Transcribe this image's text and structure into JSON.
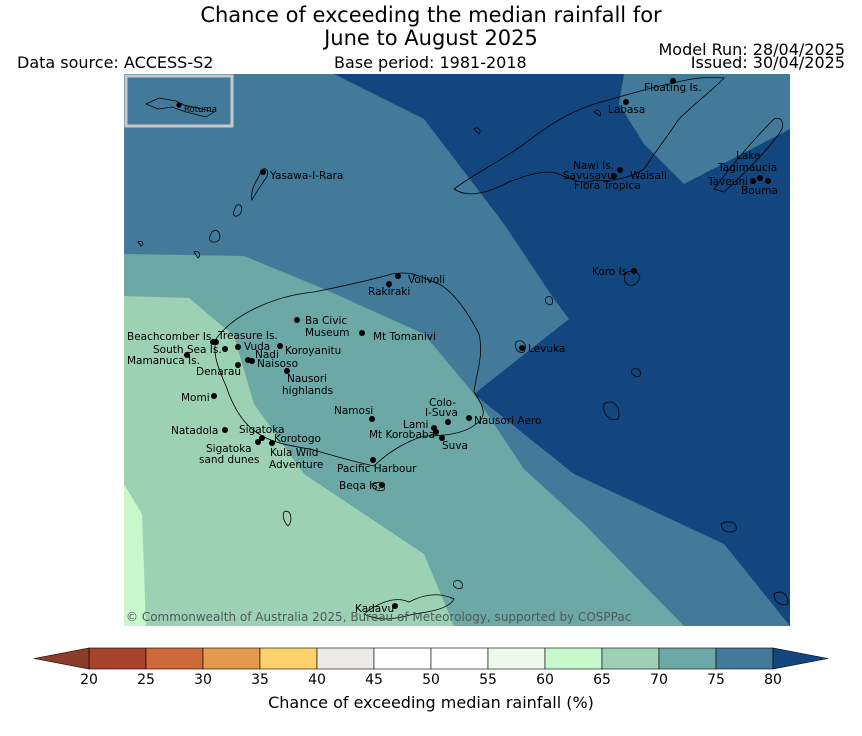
{
  "title_line1": "Chance of exceeding the median rainfall for",
  "title_line2": "June to August 2025",
  "data_source": "Data source: ACCESS-S2",
  "base_period": "Base period: 1981-2018",
  "model_run": "Model Run: 28/04/2025",
  "issued": "Issued: 30/04/2025",
  "copyright": "© Commonwealth of Australia 2025, Bureau of Meteorology, supported by COSPPac",
  "inset_label": "Rotuma",
  "colorbar": {
    "label": "Chance of exceeding median rainfall (%)",
    "ticks": [
      "20",
      "25",
      "30",
      "35",
      "40",
      "45",
      "50",
      "55",
      "60",
      "65",
      "70",
      "75",
      "80"
    ],
    "colors": [
      "#a6432a",
      "#ce6a3a",
      "#e39a4d",
      "#fdd26d",
      "#ecebe7",
      "#ffffff",
      "#ffffff",
      "#eef8ec",
      "#c8f7cb",
      "#9dd1b4",
      "#6ca8a6",
      "#437a9a"
    ],
    "below_color": "#8b3c2a",
    "above_color": "#13467f"
  },
  "places": [
    {
      "name": "Floating Is."
    },
    {
      "name": "Labasa"
    },
    {
      "name": "Yasawa-I-Rara"
    },
    {
      "name": "Nawi Is."
    },
    {
      "name": "Savusavu"
    },
    {
      "name": "Waisali"
    },
    {
      "name": "Flora Tropica"
    },
    {
      "name": "Lake"
    },
    {
      "name": "Tagimaucia"
    },
    {
      "name": "Taveuni"
    },
    {
      "name": "Bouma"
    },
    {
      "name": "Koro Is."
    },
    {
      "name": "Volivoli"
    },
    {
      "name": "Rakiraki"
    },
    {
      "name": "Ba Civic"
    },
    {
      "name": "Museum"
    },
    {
      "name": "Mt Tomanivi"
    },
    {
      "name": "Beachcomber Is."
    },
    {
      "name": "Treasure Is."
    },
    {
      "name": "South Sea Is."
    },
    {
      "name": "Vuda"
    },
    {
      "name": "Koroyanitu"
    },
    {
      "name": "Nadi"
    },
    {
      "name": "Mamanuca Is."
    },
    {
      "name": "Naisoso"
    },
    {
      "name": "Denarau"
    },
    {
      "name": "Nausori"
    },
    {
      "name": "highlands"
    },
    {
      "name": "Levuka"
    },
    {
      "name": "Momi"
    },
    {
      "name": "Namosi"
    },
    {
      "name": "Colo-"
    },
    {
      "name": "I-Suva"
    },
    {
      "name": "Natadola"
    },
    {
      "name": "Sigatoka"
    },
    {
      "name": "Lami"
    },
    {
      "name": "Nausori Aero"
    },
    {
      "name": "Korotogo"
    },
    {
      "name": "Mt Korobaba"
    },
    {
      "name": "Sigatoka"
    },
    {
      "name": "Suva"
    },
    {
      "name": "sand dunes"
    },
    {
      "name": "Kula Wild"
    },
    {
      "name": "Adventure"
    },
    {
      "name": "Pacific Harbour"
    },
    {
      "name": "Beqa Is."
    },
    {
      "name": "Kadavu"
    }
  ]
}
